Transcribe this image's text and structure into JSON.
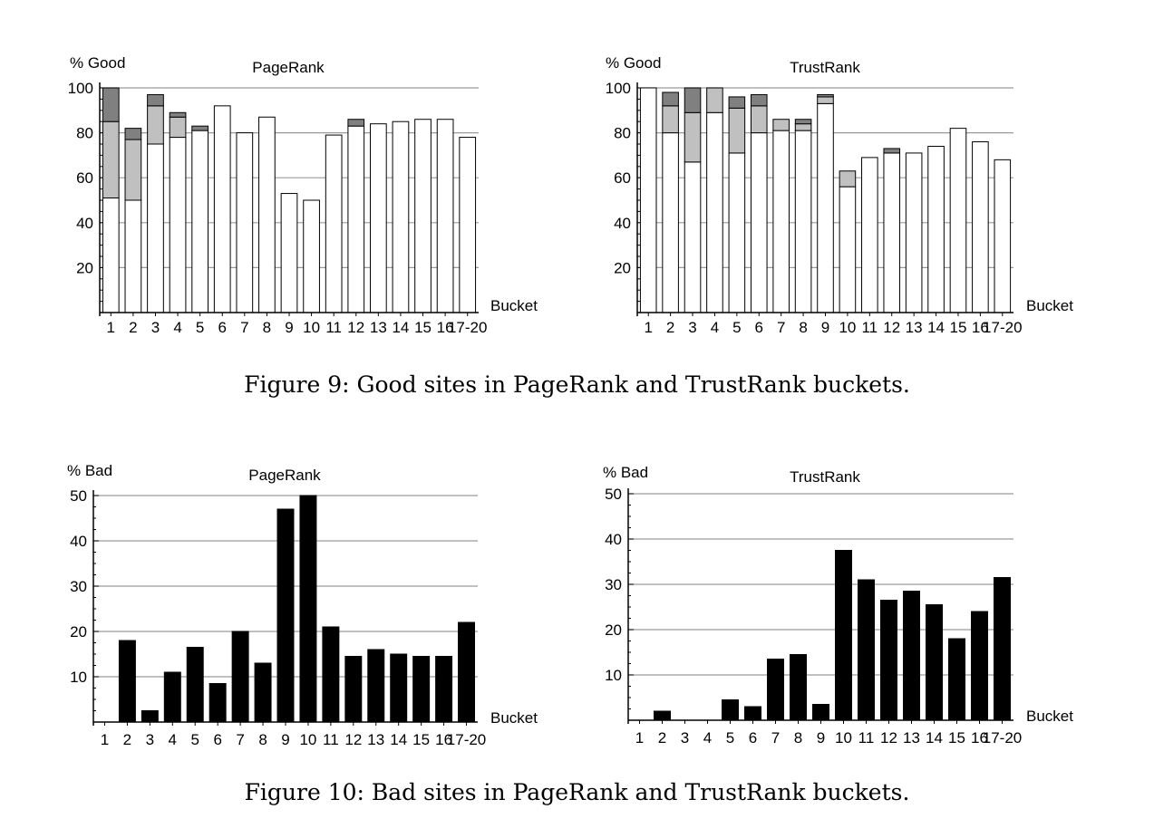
{
  "captions": {
    "figure9": "Figure 9: Good sites in PageRank and TrustRank buckets.",
    "figure10": "Figure 10: Bad sites in PageRank and TrustRank buckets."
  },
  "colors": {
    "good_base": "#ffffff",
    "good_mid": "#c0c0c0",
    "good_top": "#808080",
    "bad_bar": "#000000",
    "grid": "#9a9a9a",
    "outline": "#000000"
  },
  "chart_data": [
    {
      "id": "good-pagerank",
      "type": "bar",
      "stacked": true,
      "title": "PageRank",
      "ylabel": "% Good",
      "xlabel": "Bucket",
      "ylim": [
        0,
        100
      ],
      "yticks": [
        20,
        40,
        60,
        80,
        100
      ],
      "grid": true,
      "categories": [
        "1",
        "2",
        "3",
        "4",
        "5",
        "6",
        "7",
        "8",
        "9",
        "10",
        "11",
        "12",
        "13",
        "14",
        "15",
        "16",
        "17-20"
      ],
      "series": [
        {
          "color": "#ffffff",
          "values": [
            51,
            50,
            75,
            78,
            81,
            92,
            80,
            87,
            53,
            50,
            79,
            83,
            84,
            85,
            86,
            86,
            78
          ]
        },
        {
          "color": "#c0c0c0",
          "values": [
            34,
            27,
            17,
            9,
            0,
            0,
            0,
            0,
            0,
            0,
            0,
            0,
            0,
            0,
            0,
            0,
            0
          ]
        },
        {
          "color": "#808080",
          "values": [
            15,
            5,
            5,
            2,
            2,
            0,
            0,
            0,
            0,
            0,
            0,
            3,
            0,
            0,
            0,
            0,
            0
          ]
        }
      ]
    },
    {
      "id": "good-trustrank",
      "type": "bar",
      "stacked": true,
      "title": "TrustRank",
      "ylabel": "% Good",
      "xlabel": "Bucket",
      "ylim": [
        0,
        100
      ],
      "yticks": [
        20,
        40,
        60,
        80,
        100
      ],
      "grid": true,
      "categories": [
        "1",
        "2",
        "3",
        "4",
        "5",
        "6",
        "7",
        "8",
        "9",
        "10",
        "11",
        "12",
        "13",
        "14",
        "15",
        "16",
        "17-20"
      ],
      "series": [
        {
          "color": "#ffffff",
          "values": [
            100,
            80,
            67,
            89,
            71,
            80,
            81,
            81,
            93,
            56,
            69,
            71,
            71,
            74,
            82,
            76,
            68
          ]
        },
        {
          "color": "#c0c0c0",
          "values": [
            0,
            12,
            22,
            11,
            20,
            12,
            5,
            3,
            3,
            7,
            0,
            0,
            0,
            0,
            0,
            0,
            0
          ]
        },
        {
          "color": "#808080",
          "values": [
            0,
            6,
            11,
            0,
            5,
            5,
            0,
            2,
            1,
            0,
            0,
            2,
            0,
            0,
            0,
            0,
            0
          ]
        }
      ]
    },
    {
      "id": "bad-pagerank",
      "type": "bar",
      "title": "PageRank",
      "ylabel": "% Bad",
      "xlabel": "Bucket",
      "ylim": [
        0,
        50
      ],
      "yticks": [
        10,
        20,
        30,
        40,
        50
      ],
      "grid": true,
      "categories": [
        "1",
        "2",
        "3",
        "4",
        "5",
        "6",
        "7",
        "8",
        "9",
        "10",
        "11",
        "12",
        "13",
        "14",
        "15",
        "16",
        "17-20"
      ],
      "series": [
        {
          "color": "#000000",
          "values": [
            0,
            18,
            2.5,
            11,
            16.5,
            8.5,
            20,
            13,
            47,
            50,
            21,
            14.5,
            16,
            15,
            14.5,
            14.5,
            22
          ]
        }
      ]
    },
    {
      "id": "bad-trustrank",
      "type": "bar",
      "title": "TrustRank",
      "ylabel": "% Bad",
      "xlabel": "Bucket",
      "ylim": [
        0,
        50
      ],
      "yticks": [
        10,
        20,
        30,
        40,
        50
      ],
      "grid": true,
      "categories": [
        "1",
        "2",
        "3",
        "4",
        "5",
        "6",
        "7",
        "8",
        "9",
        "10",
        "11",
        "12",
        "13",
        "14",
        "15",
        "16",
        "17-20"
      ],
      "series": [
        {
          "color": "#000000",
          "values": [
            0,
            2,
            0,
            0,
            4.5,
            3,
            13.5,
            14.5,
            3.5,
            37.5,
            31,
            26.5,
            28.5,
            25.5,
            18,
            24,
            31.5
          ]
        }
      ]
    }
  ]
}
